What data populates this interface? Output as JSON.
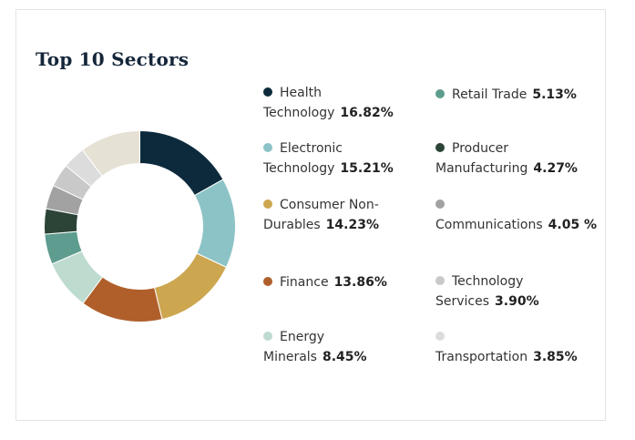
{
  "title": "Top 10 Sectors",
  "chart_data": {
    "type": "pie",
    "title": "Top 10 Sectors",
    "variant": "donut",
    "unit": "%",
    "legend_position": "right",
    "slices": [
      {
        "label": "Health Technology",
        "value": 16.82,
        "display": "16.82%",
        "color": "#0d2a3d"
      },
      {
        "label": "Electronic Technology",
        "value": 15.21,
        "display": "15.21%",
        "color": "#8cc3c6"
      },
      {
        "label": "Consumer Non-Durables",
        "value": 14.23,
        "display": "14.23%",
        "color": "#cda650"
      },
      {
        "label": "Finance",
        "value": 13.86,
        "display": "13.86%",
        "color": "#b05f2b"
      },
      {
        "label": "Energy Minerals",
        "value": 8.45,
        "display": "8.45%",
        "color": "#bedbcf"
      },
      {
        "label": "Retail Trade",
        "value": 5.13,
        "display": "5.13%",
        "color": "#5d9c8f"
      },
      {
        "label": "Producer Manufacturing",
        "value": 4.27,
        "display": "4.27%",
        "color": "#2c4437"
      },
      {
        "label": "Communications",
        "value": 4.05,
        "display": "4.05 %",
        "color": "#a2a2a2"
      },
      {
        "label": "Technology Services",
        "value": 3.9,
        "display": "3.90%",
        "color": "#c9c9c9"
      },
      {
        "label": "Transportation",
        "value": 3.85,
        "display": "3.85%",
        "color": "#dcdcdc"
      }
    ],
    "remainder": {
      "value": 10.23,
      "color": "#e6e1d5"
    }
  }
}
